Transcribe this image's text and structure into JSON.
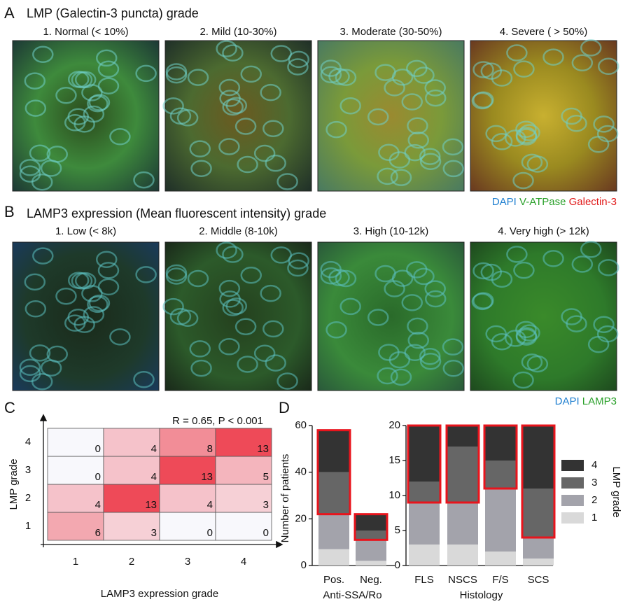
{
  "panel_a": {
    "letter": "A",
    "title": "LMP (Galectin-3 puncta) grade",
    "images": [
      "1. Normal (< 10%)",
      "2. Mild (10-30%)",
      "3. Moderate (30-50%)",
      "4. Severe ( > 50%)"
    ],
    "legend": [
      "DAPI",
      "V-ATPase",
      "Galectin-3"
    ]
  },
  "panel_b": {
    "letter": "B",
    "title": "LAMP3 expression (Mean fluorescent intensity) grade",
    "images": [
      "1. Low (< 8k)",
      "2. Middle (8-10k)",
      "3. High (10-12k)",
      "4. Very high (> 12k)"
    ],
    "legend": [
      "DAPI",
      "LAMP3"
    ]
  },
  "panel_c_letter": "C",
  "panel_d_letter": "D",
  "chart_data": [
    {
      "type": "heatmap",
      "title": "R = 0.65, P < 0.001",
      "x_label": "LAMP3 expression grade",
      "y_label": "LMP grade",
      "x_categories": [
        "1",
        "2",
        "3",
        "4"
      ],
      "y_categories": [
        "1",
        "2",
        "3",
        "4"
      ],
      "values": [
        [
          6,
          3,
          0,
          0
        ],
        [
          4,
          13,
          4,
          3
        ],
        [
          0,
          4,
          13,
          5
        ],
        [
          0,
          4,
          8,
          13
        ]
      ],
      "color": "#ee4a58"
    },
    {
      "type": "stacked_bar",
      "y_label": "Number of patients",
      "x_label": "Anti-SSA/Ro",
      "categories": [
        "Pos.",
        "Neg."
      ],
      "ylim": [
        0,
        60
      ],
      "yticks": [
        0,
        20,
        40,
        60
      ],
      "series": [
        {
          "name": "1",
          "color": "#d9d9d9",
          "values": [
            7,
            2
          ]
        },
        {
          "name": "2",
          "color": "#a3a3ab",
          "values": [
            15,
            9
          ]
        },
        {
          "name": "3",
          "color": "#666666",
          "values": [
            18,
            4
          ]
        },
        {
          "name": "4",
          "color": "#333333",
          "values": [
            18,
            7
          ]
        }
      ],
      "highlight": {
        "series": [
          2,
          3
        ],
        "color": "#e8141c"
      }
    },
    {
      "type": "stacked_bar",
      "x_label": "Histology",
      "legend_title": "LMP grade",
      "categories": [
        "FLS",
        "NSCS",
        "F/S",
        "SCS"
      ],
      "ylim": [
        0,
        20
      ],
      "yticks": [
        0,
        5,
        10,
        15,
        20
      ],
      "series": [
        {
          "name": "1",
          "color": "#d9d9d9",
          "values": [
            3,
            3,
            2,
            1
          ]
        },
        {
          "name": "2",
          "color": "#a3a3ab",
          "values": [
            6,
            6,
            9,
            3
          ]
        },
        {
          "name": "3",
          "color": "#666666",
          "values": [
            3,
            8,
            4,
            7
          ]
        },
        {
          "name": "4",
          "color": "#333333",
          "values": [
            8,
            3,
            5,
            9
          ]
        }
      ],
      "highlight": {
        "series": [
          2,
          3
        ],
        "color": "#e8141c"
      }
    }
  ]
}
